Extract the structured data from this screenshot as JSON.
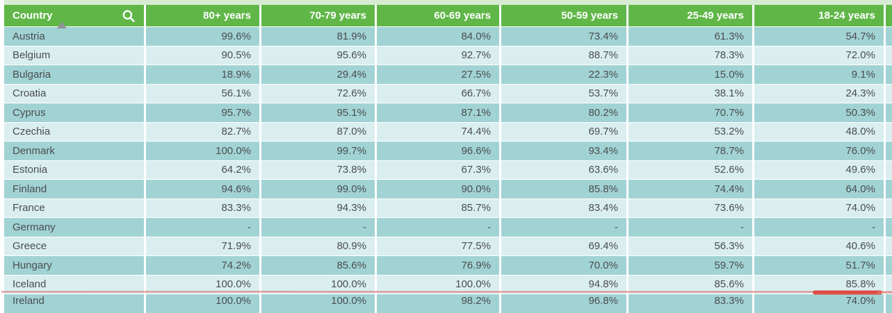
{
  "table": {
    "columns": [
      {
        "label": "Country",
        "sortable": true,
        "sorted": "ascending"
      },
      {
        "label": "80+ years"
      },
      {
        "label": "70-79 years"
      },
      {
        "label": "60-69 years"
      },
      {
        "label": "50-59 years"
      },
      {
        "label": "25-49 years"
      },
      {
        "label": "18-24 years"
      }
    ],
    "rows": [
      {
        "country": "Austria",
        "values": [
          "99.6%",
          "81.9%",
          "84.0%",
          "73.4%",
          "61.3%",
          "54.7%"
        ]
      },
      {
        "country": "Belgium",
        "values": [
          "90.5%",
          "95.6%",
          "92.7%",
          "88.7%",
          "78.3%",
          "72.0%"
        ]
      },
      {
        "country": "Bulgaria",
        "values": [
          "18.9%",
          "29.4%",
          "27.5%",
          "22.3%",
          "15.0%",
          "9.1%"
        ]
      },
      {
        "country": "Croatia",
        "values": [
          "56.1%",
          "72.6%",
          "66.7%",
          "53.7%",
          "38.1%",
          "24.3%"
        ]
      },
      {
        "country": "Cyprus",
        "values": [
          "95.7%",
          "95.1%",
          "87.1%",
          "80.2%",
          "70.7%",
          "50.3%"
        ]
      },
      {
        "country": "Czechia",
        "values": [
          "82.7%",
          "87.0%",
          "74.4%",
          "69.7%",
          "53.2%",
          "48.0%"
        ]
      },
      {
        "country": "Denmark",
        "values": [
          "100.0%",
          "99.7%",
          "96.6%",
          "93.4%",
          "78.7%",
          "76.0%"
        ]
      },
      {
        "country": "Estonia",
        "values": [
          "64.2%",
          "73.8%",
          "67.3%",
          "63.6%",
          "52.6%",
          "49.6%"
        ]
      },
      {
        "country": "Finland",
        "values": [
          "94.6%",
          "99.0%",
          "90.0%",
          "85.8%",
          "74.4%",
          "64.0%"
        ]
      },
      {
        "country": "France",
        "values": [
          "83.3%",
          "94.3%",
          "85.7%",
          "83.4%",
          "73.6%",
          "74.0%"
        ]
      },
      {
        "country": "Germany",
        "values": [
          "-",
          "-",
          "-",
          "-",
          "-",
          "-"
        ]
      },
      {
        "country": "Greece",
        "values": [
          "71.9%",
          "80.9%",
          "77.5%",
          "69.4%",
          "56.3%",
          "40.6%"
        ]
      },
      {
        "country": "Hungary",
        "values": [
          "74.2%",
          "85.6%",
          "76.9%",
          "70.0%",
          "59.7%",
          "51.7%"
        ]
      },
      {
        "country": "Iceland",
        "values": [
          "100.0%",
          "100.0%",
          "100.0%",
          "94.8%",
          "85.6%",
          "85.8%"
        ]
      }
    ],
    "partial_row": {
      "country": "Ireland",
      "values": [
        "100.0%",
        "100.0%",
        "98.2%",
        "96.8%",
        "83.3%",
        "74.0%"
      ]
    }
  },
  "icons": {
    "search": "search-icon",
    "sort": "sort-ascending-icon"
  },
  "annotation": {
    "type": "red-underline",
    "color_thin": "#dd5f5f",
    "color_thick": "#dc382d"
  },
  "colors": {
    "header_green": "#60b748",
    "row_dark_teal": "#a2d3d4",
    "row_light_teal": "#daeef0",
    "top_strip_green": "#d6ecd2",
    "cell_text": "#494d4f",
    "header_text": "#ffffff",
    "sort_arrow_gray": "#8e9496"
  }
}
